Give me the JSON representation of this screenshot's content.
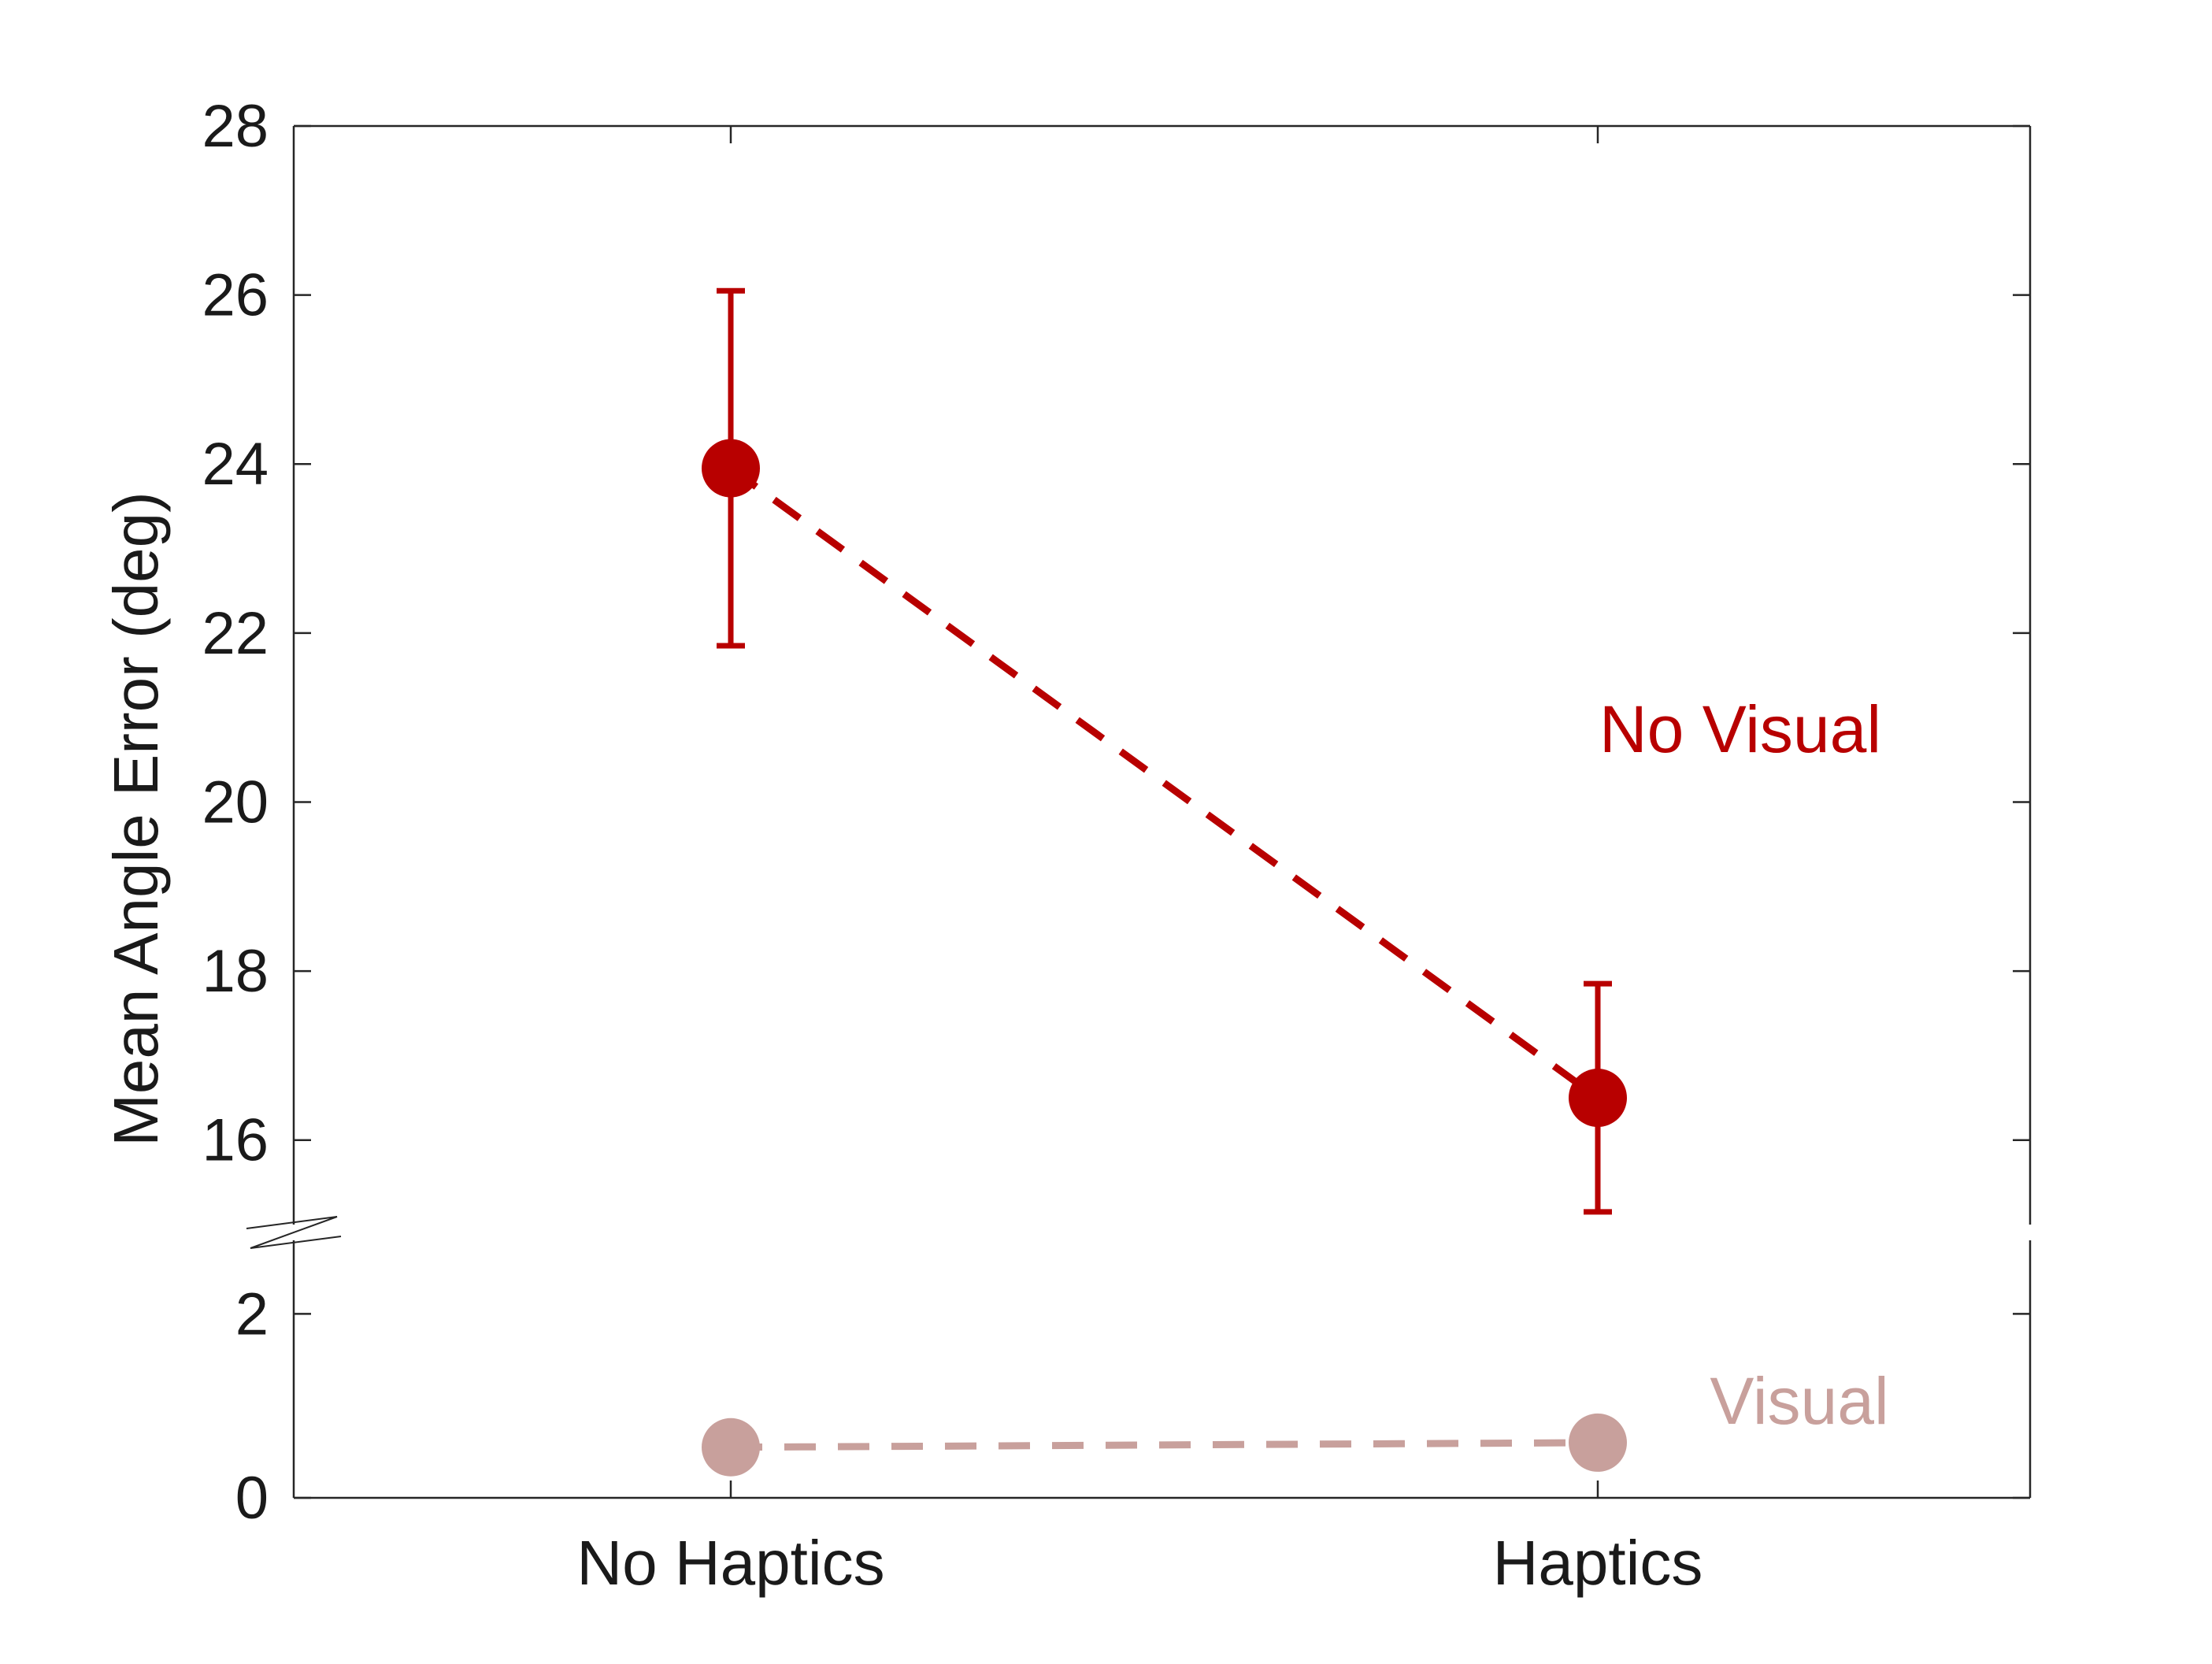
{
  "chart_data": {
    "type": "line",
    "ylabel": "Mean Angle Error (deg)",
    "xlabel": "",
    "title": "",
    "categories": [
      "No Haptics",
      "Haptics"
    ],
    "y_axis": {
      "broken": true,
      "lower_segment": {
        "range": [
          0,
          2.8
        ],
        "ticks": [
          0,
          2
        ]
      },
      "upper_segment": {
        "range": [
          15,
          28
        ],
        "ticks": [
          16,
          18,
          20,
          22,
          24,
          26,
          28
        ]
      }
    },
    "grid": false,
    "line_style": "dashed",
    "series": [
      {
        "name": "No Visual",
        "color": "#b80000",
        "values": [
          23.95,
          16.5
        ],
        "error_low": [
          21.85,
          15.15
        ],
        "error_high": [
          26.05,
          17.85
        ]
      },
      {
        "name": "Visual",
        "color": "#c8a09c",
        "values": [
          0.55,
          0.6
        ]
      }
    ]
  }
}
